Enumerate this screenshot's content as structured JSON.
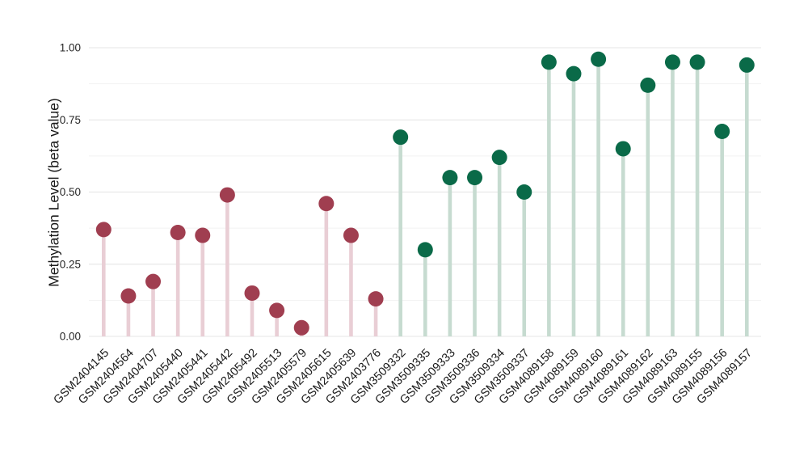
{
  "figure": {
    "background_color": "#ffffff"
  },
  "chart_data": {
    "type": "lollipop",
    "title": "",
    "xlabel": "",
    "ylabel": "Methylation Level (beta value)",
    "ylim": [
      0,
      1
    ],
    "yticks": [
      0,
      0.25,
      0.5,
      0.75,
      1.0
    ],
    "ytick_labels": [
      "0.00",
      "0.25",
      "0.50",
      "0.75",
      "1.00"
    ],
    "minor_grid_values": [
      0.125,
      0.375,
      0.625,
      0.875
    ],
    "grid": "horizontal",
    "legend_position": "none",
    "x_tick_rotation_deg": 45,
    "style": {
      "major_grid_color": "#e4e4e4",
      "minor_grid_color": "#f2f2f2",
      "axis_text_color": "#262626"
    },
    "groups": [
      {
        "name": "maroon-group",
        "dot_color": "#a03e50",
        "stem_color": "#e9ced5"
      },
      {
        "name": "green-group",
        "dot_color": "#0a6a48",
        "stem_color": "#c6dbd0"
      }
    ],
    "categories": [
      "GSM2404145",
      "GSM2404564",
      "GSM2404707",
      "GSM2405440",
      "GSM2405441",
      "GSM2405442",
      "GSM2405492",
      "GSM2405513",
      "GSM2405579",
      "GSM2405615",
      "GSM2405639",
      "GSM2403776",
      "GSM3509332",
      "GSM3509335",
      "GSM3509333",
      "GSM3509336",
      "GSM3509334",
      "GSM3509337",
      "GSM4089158",
      "GSM4089159",
      "GSM4089160",
      "GSM4089161",
      "GSM4089162",
      "GSM4089163",
      "GSM4089155",
      "GSM4089156",
      "GSM4089157"
    ],
    "values": [
      0.37,
      0.14,
      0.19,
      0.36,
      0.35,
      0.49,
      0.15,
      0.09,
      0.03,
      0.46,
      0.35,
      0.13,
      0.69,
      0.3,
      0.55,
      0.55,
      0.62,
      0.5,
      0.95,
      0.91,
      0.96,
      0.65,
      0.87,
      0.95,
      0.95,
      0.71,
      0.94
    ],
    "point_groups": [
      0,
      0,
      0,
      0,
      0,
      0,
      0,
      0,
      0,
      0,
      0,
      0,
      1,
      1,
      1,
      1,
      1,
      1,
      1,
      1,
      1,
      1,
      1,
      1,
      1,
      1,
      1
    ]
  }
}
